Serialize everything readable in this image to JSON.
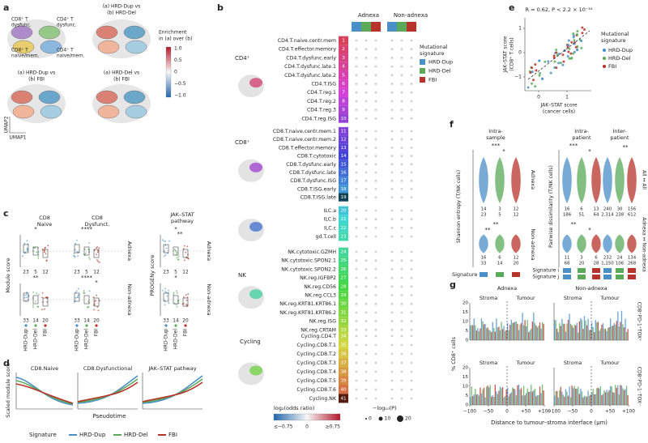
{
  "panel_letters": [
    "a",
    "b",
    "c",
    "d",
    "e",
    "f",
    "g"
  ],
  "a": {
    "cell_labels": [
      [
        "CD8⁺ T",
        "dysfunc."
      ],
      [
        "CD4⁺ T",
        "dysfunc."
      ],
      [
        "CD8⁺ T",
        "naive/mem."
      ],
      [
        "CD4⁺ T",
        "naive/mem."
      ]
    ],
    "comparisons": [
      [
        "(a) HRD-Dup vs",
        "(b) HRD-Del"
      ],
      [
        "(a) HRD-Dup vs",
        "(b) FBI"
      ],
      [
        "(a) HRD-Del vs",
        "(b) FBI"
      ]
    ],
    "colorbar_title": [
      "Enrichment",
      "in (a) over (b)"
    ],
    "colorbar_ticks": [
      "1.0",
      "0.5",
      "0",
      "−0.5",
      "−1.0"
    ],
    "y_axis": "UMAP2",
    "x_axis": "UMAP1"
  },
  "b": {
    "headers": [
      "Adnexa",
      "Non-adnexa"
    ],
    "groups": [
      {
        "label": "CD4⁺",
        "ids": [
          1,
          2,
          3,
          4,
          5,
          6,
          7,
          8,
          9,
          10
        ],
        "names": [
          "CD4.T.naive.centr.mem",
          "CD4.T.effector.memory",
          "CD4.T.dysfunc.early",
          "CD4.T.dysfunc.late.1",
          "CD4.T.dysfunc.late.2",
          "CD4.T.ISG",
          "CD4.T.reg.1",
          "CD4.T.reg.2",
          "CD4.T.reg.3",
          "CD4.T.reg.ISG"
        ]
      },
      {
        "label": "CD8⁺",
        "ids": [
          11,
          12,
          13,
          14,
          15,
          16,
          17,
          18,
          19
        ],
        "names": [
          "CD8.T.naive.centr.mem.1",
          "CD8.T.naive.centr.mem.2",
          "CD8.T.effector.memory",
          "CD8.T.cytotoxic",
          "CD8.T.dysfunc.early",
          "CD8.T.dysfunc.late",
          "CD8.T.dysfunc.ISG",
          "CD8.T.ISG.early",
          "CD8.T.ISG.late"
        ]
      },
      {
        "ids": [
          20,
          21,
          22,
          23
        ],
        "names": [
          "ILC.a",
          "ILC.b",
          "ILC.c",
          "gd.T.cell"
        ]
      },
      {
        "label": "NK",
        "ids": [
          24,
          25,
          26,
          27,
          28,
          29,
          30,
          31,
          32,
          33
        ],
        "names": [
          "NK.cytotoxic.GZMH",
          "NK.cytotoxic.SPON2.1",
          "NK.cytotoxic.SPON2.2",
          "NK.reg.IGFBP2",
          "NK.reg.CD56",
          "NK.reg.CCL3",
          "NK.reg.KRT81.KRT86.1",
          "NK.reg.KRT81.KRT86.2",
          "NK.reg.ISG",
          "NK.reg.CRTAM"
        ]
      },
      {
        "label": "Cycling",
        "ids": [
          34,
          35,
          36,
          37,
          38,
          39,
          40,
          41
        ],
        "names": [
          "Cycling.CD4.T",
          "Cycling.CD8.T.1",
          "Cycling.CD8.T.2",
          "Cycling.CD8.T.3",
          "Cycling.CD8.T.4",
          "Cycling.CD8.T.5",
          "Cycling.CD8.T.6",
          "Cycling.NK"
        ]
      }
    ],
    "legend_title": [
      "Mutational",
      "signature"
    ],
    "legend": [
      "HRD-Dup",
      "HRD-Del",
      "FBI"
    ],
    "color_legend_title": "log₂(odds ratio)",
    "color_ticks": [
      "≤−0.75",
      "0",
      "≥0.75"
    ],
    "size_legend_title": "−log₁₀(P)",
    "size_ticks": [
      "0",
      "10",
      "20"
    ]
  },
  "c": {
    "titles": [
      [
        "CD8",
        "Naive"
      ],
      [
        "CD8",
        "Dysfunct."
      ],
      [
        "JAK–STAT",
        "pathway"
      ]
    ],
    "y_labels": [
      "Module score",
      "PROGENy score"
    ],
    "sites": [
      "Adnexa",
      "Non-adnexa"
    ],
    "signatures": [
      "HRD-Dup",
      "HRD-Del",
      "FBI"
    ],
    "counts": [
      [
        23,
        5,
        12
      ],
      [
        33,
        14,
        20
      ]
    ],
    "stars_left": [
      [
        "*",
        "****"
      ],
      [
        "**",
        "****",
        "*"
      ]
    ],
    "stars_right": [
      [
        "*",
        "**"
      ],
      [
        "*"
      ]
    ]
  },
  "d": {
    "titles": [
      "CD8.Naive",
      "CD8.Dysfunctional",
      "JAK–STAT pathway"
    ],
    "y_label": "Scaled module score",
    "x_label": "Pseudotime",
    "legend_title": "Signature",
    "legend": [
      "HRD-Dup",
      "HRD-Del",
      "FBI"
    ]
  },
  "e": {
    "stat": "R = 0.62, P < 2.2 × 10⁻¹⁶",
    "y_label": [
      "JAK–STAT score",
      "(CD8⁺ T cells)"
    ],
    "x_label": [
      "JAK–STAT score",
      "(cancer cells)"
    ],
    "xticks": [
      "0",
      "1"
    ],
    "yticks": [
      "1",
      "0",
      "−1"
    ],
    "legend_title": [
      "Mutational",
      "signature"
    ],
    "legend": [
      "HRD-Dup",
      "HRD-Del",
      "FBI"
    ]
  },
  "f": {
    "titles": [
      [
        "Intra-",
        "sample"
      ],
      [
        "Intra-",
        "patient"
      ],
      [
        "Inter-",
        "patient"
      ]
    ],
    "y_labels": [
      "Shannon entropy (T/NK cells)",
      "Pairwise dissimilarity (T/NK cells)"
    ],
    "sites": [
      "Adnexa",
      "Non-adnexa"
    ],
    "right_labels": [
      "All ↔ All",
      "Adnexa ↔ Non-adnexa"
    ],
    "counts_sample": [
      [
        [
          "14",
          "3",
          "12"
        ],
        [
          "23",
          "5",
          "12"
        ]
      ],
      [
        [
          "16",
          "6",
          "12"
        ],
        [
          "33",
          "14",
          "20"
        ]
      ]
    ],
    "counts_intra": [
      [
        [
          "16",
          "6",
          "13"
        ],
        [
          "186",
          "51",
          "64"
        ]
      ],
      [
        [
          "11",
          "3",
          "6"
        ],
        [
          "68",
          "20",
          "28"
        ]
      ]
    ],
    "counts_inter": [
      [
        [
          "240",
          "30",
          "156"
        ],
        [
          "2,314",
          "238",
          "612"
        ]
      ],
      [
        [
          "232",
          "24",
          "134"
        ],
        [
          "1,150",
          "106",
          "268"
        ]
      ]
    ],
    "stars_sample": [
      [
        "***",
        "*"
      ],
      [
        "**",
        "**"
      ]
    ],
    "stars_pairwise": [
      [
        "***",
        "*",
        "**"
      ],
      [
        "**",
        "*"
      ]
    ],
    "signature_label": "Signature",
    "pair_labels": [
      "Signature i",
      "Signature j"
    ]
  },
  "g": {
    "sites": [
      "Adnexa",
      "Non-adnexa"
    ],
    "regions": [
      "Stroma",
      "Tumour"
    ],
    "yticks": [
      "20",
      "15",
      "10",
      "5",
      "0"
    ],
    "xticks": [
      "−100",
      "−50",
      "0",
      "+50",
      "+100"
    ],
    "y_label": "% CD8⁺ cells",
    "row_labels": [
      "CD8⁺PD-1⁺TOX⁺",
      "CD8⁺PD-1⁻TOX⁻"
    ],
    "x_label": "Distance to tumour–stroma interface (μm)"
  }
}
